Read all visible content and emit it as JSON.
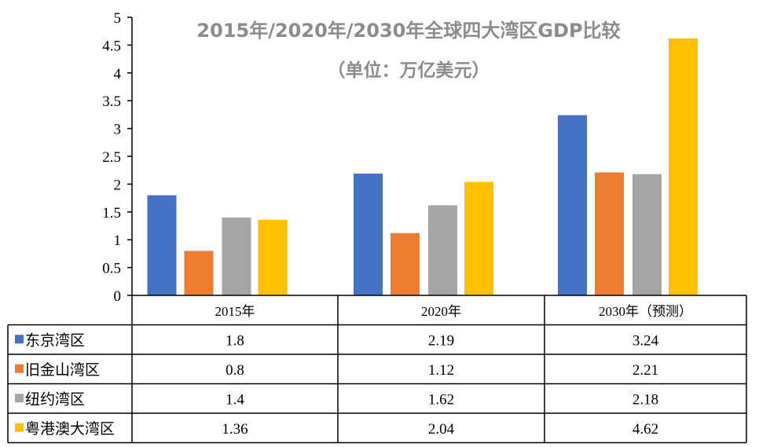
{
  "chart_data": {
    "type": "bar",
    "title": "2015年/2020年/2030年全球四大湾区GDP比较",
    "subtitle": "（单位：万亿美元）",
    "categories": [
      "2015年",
      "2020年",
      "2030年（预测）"
    ],
    "ylim": [
      0,
      5
    ],
    "yticks": [
      "0",
      "0.5",
      "1",
      "1.5",
      "2",
      "2.5",
      "3",
      "3.5",
      "4",
      "4.5",
      "5"
    ],
    "grid": false,
    "legend": "data table below chart",
    "series": [
      {
        "name": "东京湾区",
        "color": "#4472C4",
        "values": [
          1.8,
          2.19,
          3.24
        ],
        "labels": [
          "1.8",
          "2.19",
          "3.24"
        ]
      },
      {
        "name": "旧金山湾区",
        "color": "#ED7D31",
        "values": [
          0.8,
          1.12,
          2.21
        ],
        "labels": [
          "0.8",
          "1.12",
          "2.21"
        ]
      },
      {
        "name": "纽约湾区",
        "color": "#A5A5A5",
        "values": [
          1.4,
          1.62,
          2.18
        ],
        "labels": [
          "1.4",
          "1.62",
          "2.18"
        ]
      },
      {
        "name": "粤港澳大湾区",
        "color": "#FFC000",
        "values": [
          1.36,
          2.04,
          4.62
        ],
        "labels": [
          "1.36",
          "2.04",
          "4.62"
        ]
      }
    ]
  }
}
